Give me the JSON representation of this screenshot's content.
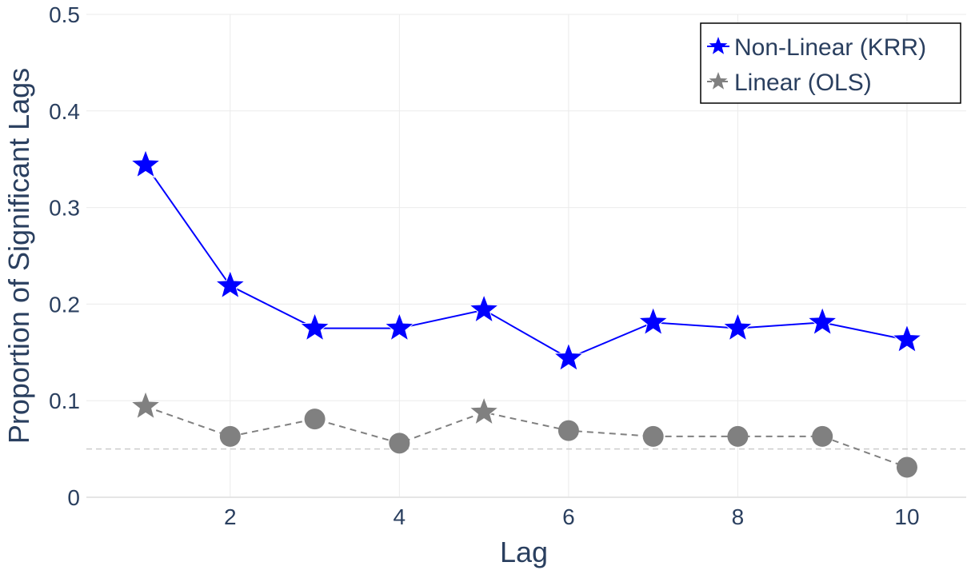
{
  "chart_data": {
    "type": "line",
    "title": "",
    "xlabel": "Lag",
    "ylabel": "Proportion of Significant Lags",
    "x": [
      1,
      2,
      3,
      4,
      5,
      6,
      7,
      8,
      9,
      10
    ],
    "xlim": [
      0.3,
      10.7
    ],
    "ylim": [
      0,
      0.5
    ],
    "x_ticks": [
      2,
      4,
      6,
      8,
      10
    ],
    "y_ticks": [
      0,
      0.1,
      0.2,
      0.3,
      0.4,
      0.5
    ],
    "y_tick_labels": [
      "0",
      "0.1",
      "0.2",
      "0.3",
      "0.4",
      "0.5"
    ],
    "grid": true,
    "reference_line": {
      "y": 0.05,
      "style": "dashed",
      "color": "#cccccc"
    },
    "legend_position": "top-right",
    "series": [
      {
        "name": "Non-Linear (KRR)",
        "values": [
          0.344,
          0.219,
          0.175,
          0.175,
          0.194,
          0.144,
          0.181,
          0.175,
          0.181,
          0.163
        ],
        "color": "#0000ff",
        "line_style": "solid",
        "markers": [
          "star",
          "star",
          "star",
          "star",
          "star",
          "star",
          "star",
          "star",
          "star",
          "star"
        ]
      },
      {
        "name": "Linear (OLS)",
        "values": [
          0.094,
          0.063,
          0.081,
          0.056,
          0.088,
          0.069,
          0.063,
          0.063,
          0.063,
          0.031
        ],
        "color": "#808080",
        "line_style": "dashed",
        "markers": [
          "star",
          "circle",
          "circle",
          "circle",
          "star",
          "circle",
          "circle",
          "circle",
          "circle",
          "circle"
        ]
      }
    ]
  }
}
